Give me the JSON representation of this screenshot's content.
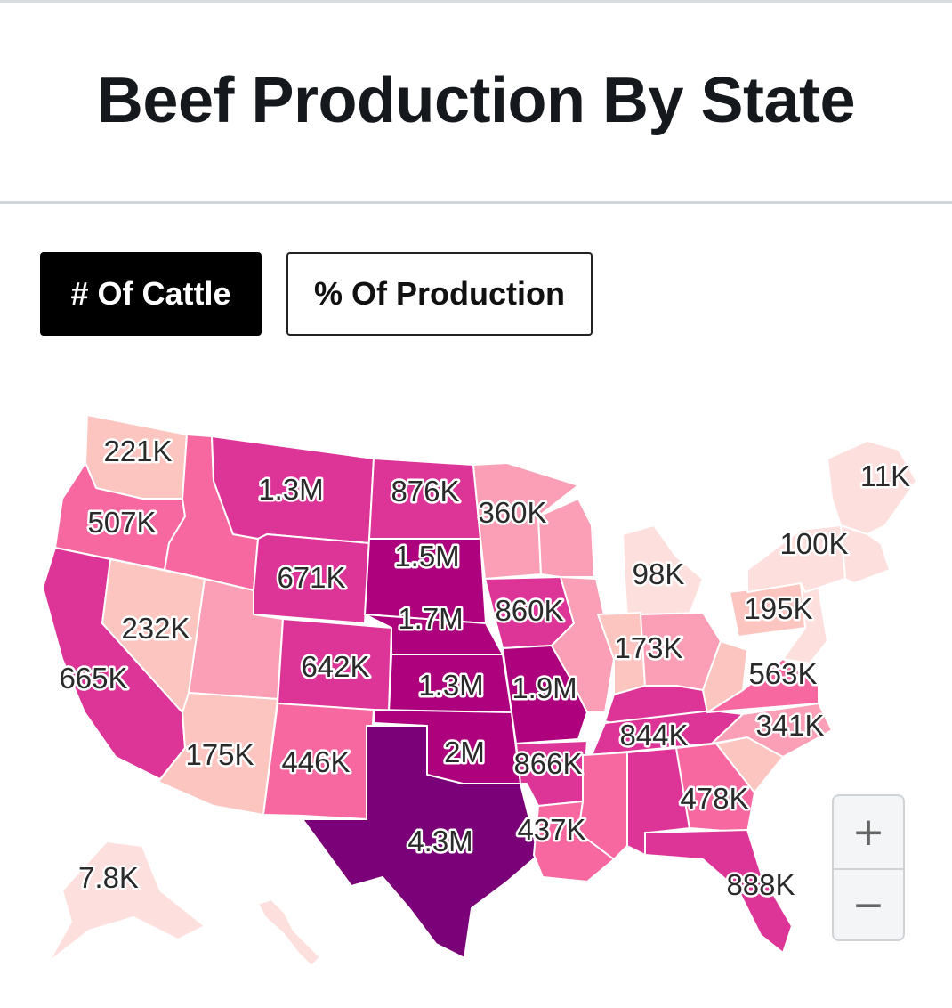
{
  "page": {
    "title": "Beef Production By State"
  },
  "toggle": {
    "cattle_label": "# Of Cattle",
    "production_label": "% Of Production",
    "selected": "cattle_label"
  },
  "map": {
    "type": "choropleth",
    "colors": {
      "very_low": "#fde0dd",
      "low": "#fcc5c0",
      "mid_low": "#fa9fb5",
      "mid": "#f768a1",
      "high": "#dd3497",
      "very_high": "#ae017e",
      "max": "#7a0177"
    },
    "labels": [
      {
        "state": "Washington",
        "text": "221K",
        "band": "low"
      },
      {
        "state": "Oregon",
        "text": "507K",
        "band": "mid"
      },
      {
        "state": "California",
        "text": "665K",
        "band": "high"
      },
      {
        "state": "Nevada",
        "text": "232K",
        "band": "low"
      },
      {
        "state": "Idaho",
        "text": "",
        "band": "mid"
      },
      {
        "state": "Montana",
        "text": "1.3M",
        "band": "high"
      },
      {
        "state": "Wyoming",
        "text": "671K",
        "band": "high"
      },
      {
        "state": "Utah",
        "text": "",
        "band": "mid_low"
      },
      {
        "state": "Arizona",
        "text": "175K",
        "band": "low"
      },
      {
        "state": "Colorado",
        "text": "642K",
        "band": "high"
      },
      {
        "state": "New Mexico",
        "text": "446K",
        "band": "mid"
      },
      {
        "state": "North Dakota",
        "text": "876K",
        "band": "high"
      },
      {
        "state": "South Dakota",
        "text": "1.5M",
        "band": "very_high"
      },
      {
        "state": "Nebraska",
        "text": "1.7M",
        "band": "very_high"
      },
      {
        "state": "Kansas",
        "text": "1.3M",
        "band": "very_high"
      },
      {
        "state": "Oklahoma",
        "text": "2M",
        "band": "very_high"
      },
      {
        "state": "Texas",
        "text": "4.3M",
        "band": "max"
      },
      {
        "state": "Minnesota",
        "text": "360K",
        "band": "mid_low"
      },
      {
        "state": "Iowa",
        "text": "860K",
        "band": "high"
      },
      {
        "state": "Missouri",
        "text": "1.9M",
        "band": "very_high"
      },
      {
        "state": "Arkansas",
        "text": "866K",
        "band": "high"
      },
      {
        "state": "Louisiana",
        "text": "437K",
        "band": "mid"
      },
      {
        "state": "Wisconsin",
        "text": "",
        "band": "mid_low"
      },
      {
        "state": "Illinois",
        "text": "",
        "band": "mid_low"
      },
      {
        "state": "Michigan",
        "text": "98K",
        "band": "very_low"
      },
      {
        "state": "Indiana",
        "text": "173K",
        "band": "low"
      },
      {
        "state": "Ohio",
        "text": "",
        "band": "mid_low"
      },
      {
        "state": "Kentucky",
        "text": "",
        "band": "high"
      },
      {
        "state": "Tennessee",
        "text": "844K",
        "band": "high"
      },
      {
        "state": "Mississippi",
        "text": "",
        "band": "mid"
      },
      {
        "state": "Alabama",
        "text": "",
        "band": "high"
      },
      {
        "state": "Georgia",
        "text": "478K",
        "band": "mid"
      },
      {
        "state": "Florida",
        "text": "888K",
        "band": "high"
      },
      {
        "state": "South Carolina",
        "text": "",
        "band": "low"
      },
      {
        "state": "North Carolina",
        "text": "341K",
        "band": "mid_low"
      },
      {
        "state": "Virginia",
        "text": "563K",
        "band": "mid"
      },
      {
        "state": "West Virginia",
        "text": "",
        "band": "low"
      },
      {
        "state": "Pennsylvania",
        "text": "195K",
        "band": "low"
      },
      {
        "state": "New York",
        "text": "100K",
        "band": "very_low"
      },
      {
        "state": "Maine",
        "text": "11K",
        "band": "very_low"
      },
      {
        "state": "Alaska",
        "text": "7.8K",
        "band": "very_low"
      }
    ]
  },
  "zoom": {
    "in_glyph": "+",
    "out_glyph": "−"
  }
}
